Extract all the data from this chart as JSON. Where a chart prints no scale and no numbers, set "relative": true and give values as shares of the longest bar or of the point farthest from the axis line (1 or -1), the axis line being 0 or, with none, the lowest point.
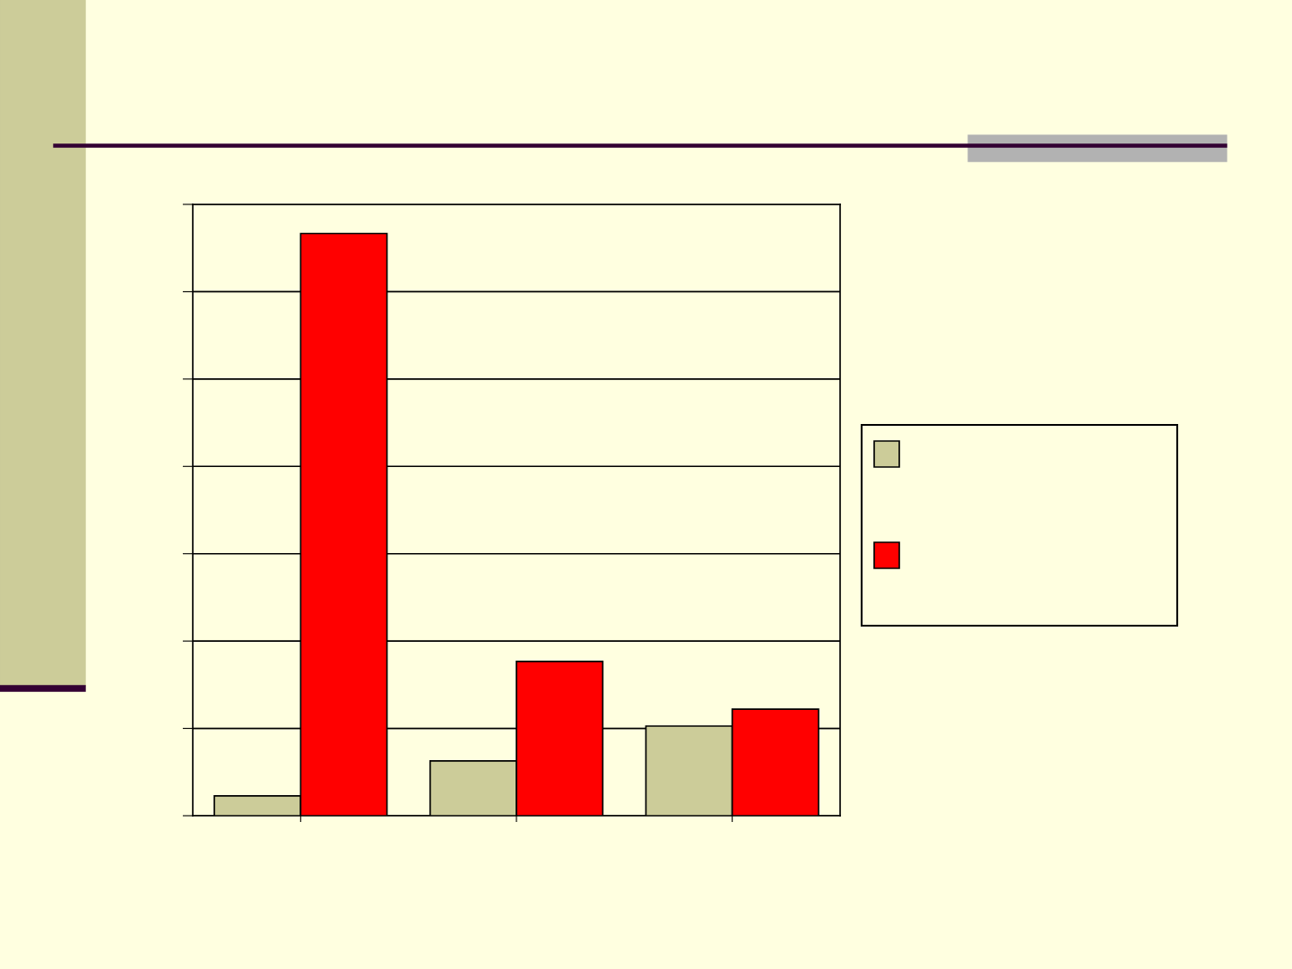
{
  "chart_data": {
    "type": "bar",
    "relative": true,
    "categories": [
      null,
      null,
      null
    ],
    "series": [
      {
        "color": "#cccc99",
        "values": [
          0.034,
          0.094,
          0.154
        ]
      },
      {
        "color": "#ff0000",
        "values": [
          1,
          0.265,
          0.183
        ]
      }
    ],
    "grid": "y",
    "tick_labels": false
  }
}
